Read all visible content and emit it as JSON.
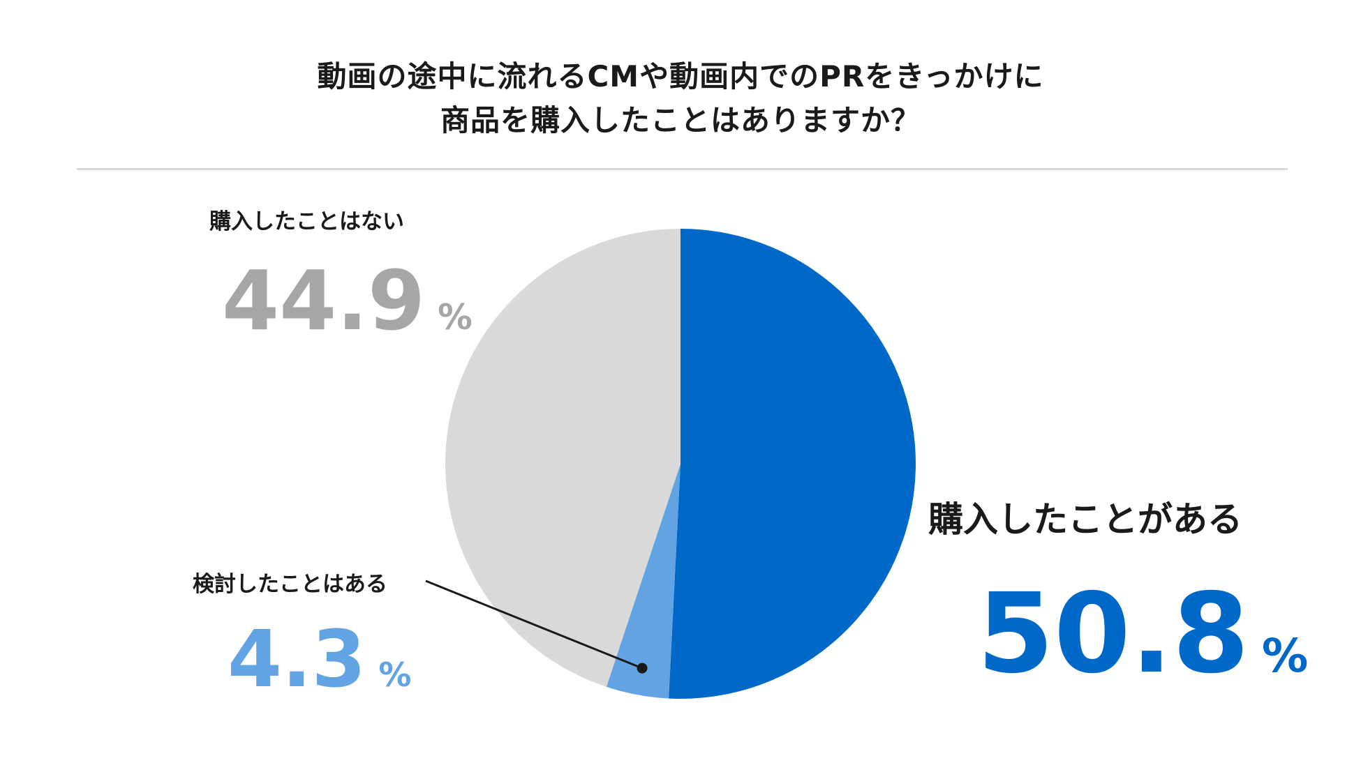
{
  "chart_data": {
    "type": "pie",
    "title": [
      "動画の途中に流れるCMや動画内でのPRをきっかけに",
      "商品を購入したことはありますか？"
    ],
    "unit": "%",
    "start_angle_deg": 0,
    "direction": "clockwise",
    "slices": [
      {
        "label": "購入したことがある",
        "value": 50.8,
        "display": "50.8",
        "color": "#0068c9"
      },
      {
        "label": "検討したことはある",
        "value": 4.3,
        "display": "4.3",
        "color": "#62a3e4"
      },
      {
        "label": "購入したことはない",
        "value": 44.9,
        "display": "44.9",
        "color": "#d9d9d9"
      }
    ],
    "value_colors": [
      "#0068c9",
      "#62a3e4",
      "#a6a6a6"
    ]
  }
}
